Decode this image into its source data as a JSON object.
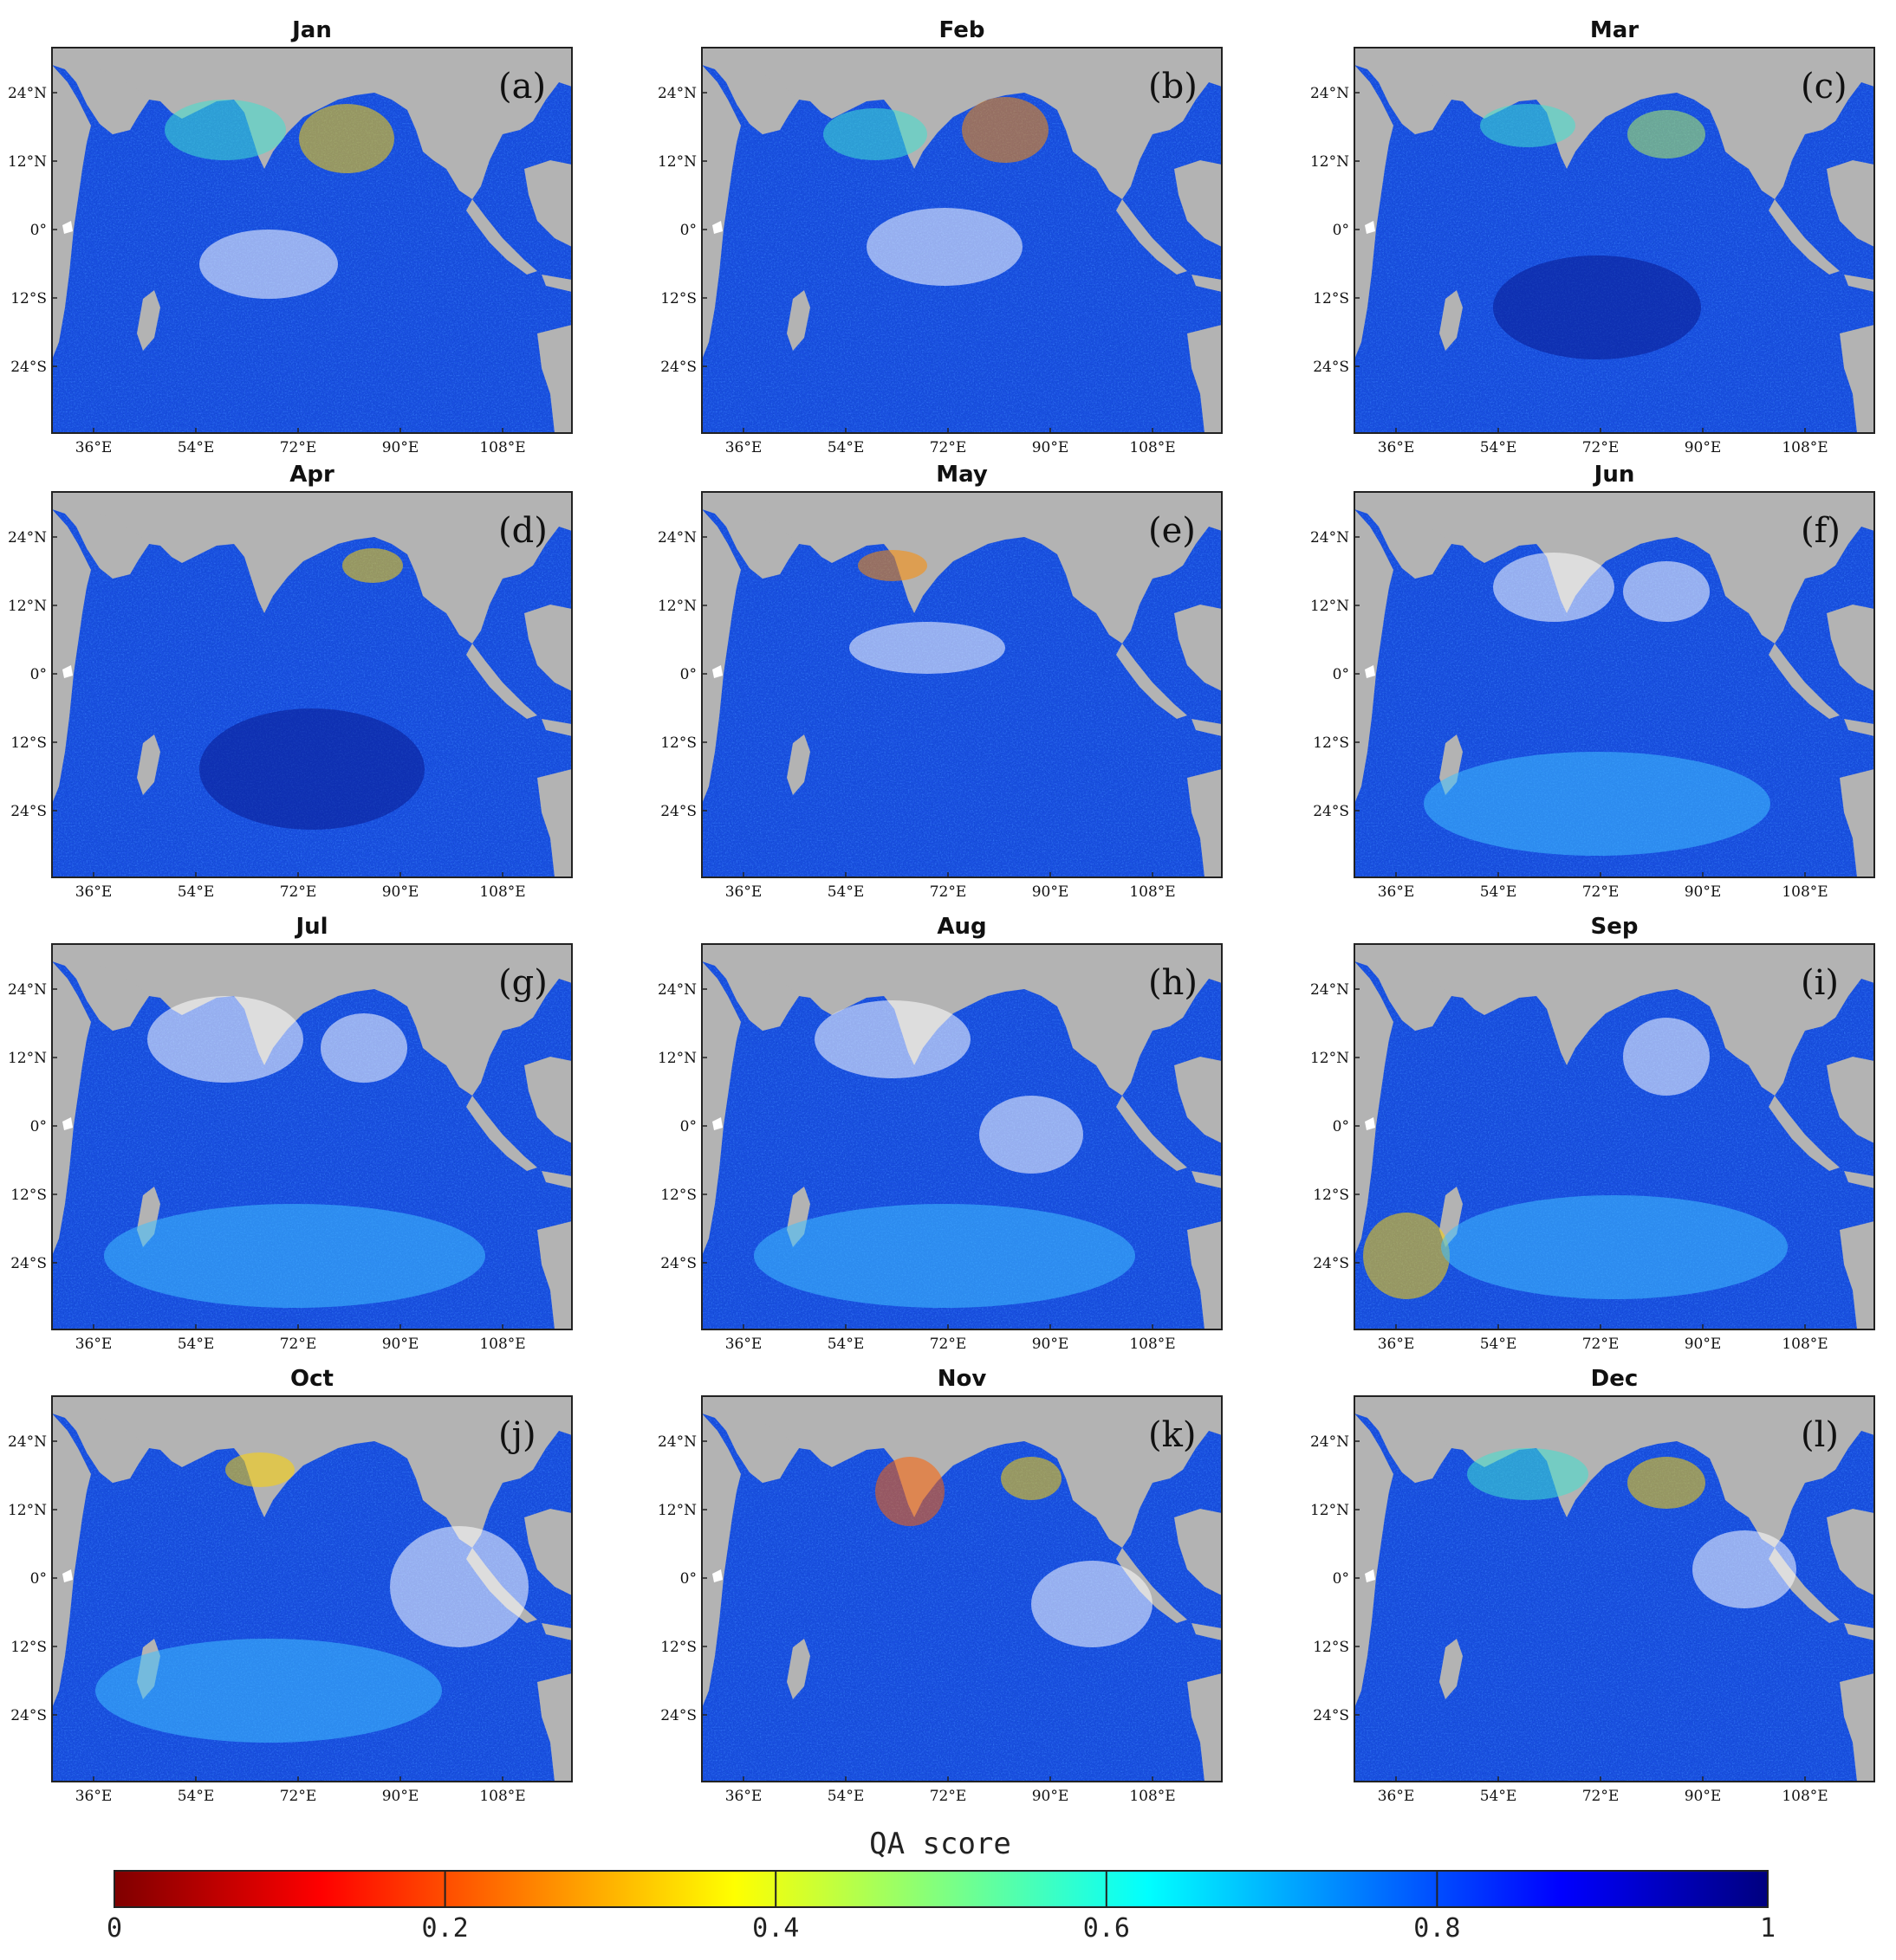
{
  "figure": {
    "colors": {
      "land": "#b3b3b3",
      "no_data": "#ffffff",
      "ocean_base": "#1a4fe0",
      "frame": "#222222"
    },
    "x_ticks": [
      "36°E",
      "54°E",
      "72°E",
      "90°E",
      "108°E"
    ],
    "y_ticks": [
      "24°N",
      "12°N",
      "0°",
      "12°S",
      "24°S"
    ],
    "panels": [
      {
        "title": "Jan",
        "letter": "(a)"
      },
      {
        "title": "Feb",
        "letter": "(b)"
      },
      {
        "title": "Mar",
        "letter": "(c)"
      },
      {
        "title": "Apr",
        "letter": "(d)"
      },
      {
        "title": "May",
        "letter": "(e)"
      },
      {
        "title": "Jun",
        "letter": "(f)"
      },
      {
        "title": "Jul",
        "letter": "(g)"
      },
      {
        "title": "Aug",
        "letter": "(h)"
      },
      {
        "title": "Sep",
        "letter": "(i)"
      },
      {
        "title": "Oct",
        "letter": "(j)"
      },
      {
        "title": "Nov",
        "letter": "(k)"
      },
      {
        "title": "Dec",
        "letter": "(l)"
      }
    ],
    "colorbar": {
      "title": "QA score",
      "ticks": [
        "0",
        "0.2",
        "0.4",
        "0.6",
        "0.8",
        "1"
      ],
      "range": [
        0,
        1
      ],
      "colormap": "jet-reversed",
      "stops": [
        "#7f0000",
        "#ff0000",
        "#ff8000",
        "#ffff00",
        "#80ff80",
        "#00ffff",
        "#0080ff",
        "#0000ff",
        "#00007f"
      ]
    }
  }
}
